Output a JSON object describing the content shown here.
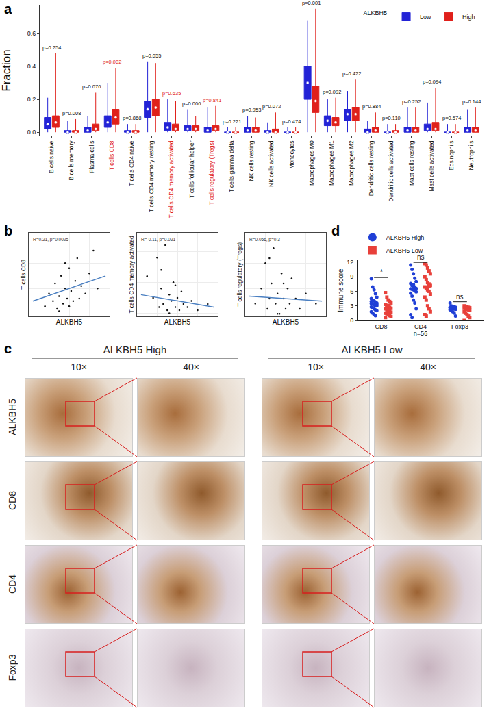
{
  "chart_data": [
    {
      "panel": "a",
      "type": "box",
      "y_label": "Fraction",
      "legend": "top right",
      "legend_title": "ALKBH5",
      "categories": [
        "B cells naive",
        "B cells memory",
        "Plasma cells",
        "T cells CD8",
        "T cells CD4 naive",
        "T cells CD4 memory resting",
        "T cells CD4 memory activated",
        "T cells follicular helper",
        "T cells regulatory (Tregs)",
        "T cells gamma delta",
        "NK cells resting",
        "NK cells activated",
        "Monocytes",
        "Macrophages M0",
        "Macrophages M1",
        "Macrophages M2",
        "Dendritic cells resting",
        "Dendritic cells activated",
        "Mast cells resting",
        "Mast cells activated",
        "Eosinophils",
        "Neutrophils"
      ],
      "annotations": [
        {
          "text": "p=0.254",
          "color": "#111111"
        },
        {
          "text": "p=0.008",
          "color": "#111111"
        },
        {
          "text": "p=0.076",
          "color": "#111111"
        },
        {
          "text": "p=0.002",
          "color": "#e0201b"
        },
        {
          "text": "p=0.868",
          "color": "#111111"
        },
        {
          "text": "p=0.055",
          "color": "#111111"
        },
        {
          "text": "p=0.635",
          "color": "#e0201b"
        },
        {
          "text": "p=0.006",
          "color": "#111111"
        },
        {
          "text": "p=0.841",
          "color": "#e0201b"
        },
        {
          "text": "p=0.221",
          "color": "#111111"
        },
        {
          "text": "p=0.953",
          "color": "#111111"
        },
        {
          "text": "p=0.072",
          "color": "#111111"
        },
        {
          "text": "p=0.474",
          "color": "#111111"
        },
        {
          "text": "p=0.001",
          "color": "#111111"
        },
        {
          "text": "p=0.092",
          "color": "#111111"
        },
        {
          "text": "p=0.422",
          "color": "#111111"
        },
        {
          "text": "p=0.884",
          "color": "#111111"
        },
        {
          "text": "p=0.110",
          "color": "#111111"
        },
        {
          "text": "p=0.252",
          "color": "#111111"
        },
        {
          "text": "p=0.094",
          "color": "#111111"
        },
        {
          "text": "p=0.574",
          "color": "#111111"
        },
        {
          "text": "p=0.144",
          "color": "#111111"
        }
      ],
      "series": [
        {
          "name": "Low",
          "color": "#2323d6",
          "median": [
            0.05,
            0.0,
            0.01,
            0.06,
            0.0,
            0.14,
            0.03,
            0.02,
            0.01,
            0.0,
            0.01,
            0.0,
            0.0,
            0.3,
            0.07,
            0.11,
            0.0,
            0.0,
            0.01,
            0.02,
            0.0,
            0.01
          ],
          "q1": [
            0.02,
            0,
            0,
            0.03,
            0,
            0.09,
            0.01,
            0.01,
            0,
            0,
            0,
            0,
            0,
            0.2,
            0.04,
            0.07,
            0,
            0,
            0,
            0.01,
            0,
            0
          ],
          "q3": [
            0.09,
            0.01,
            0.03,
            0.1,
            0.01,
            0.19,
            0.06,
            0.04,
            0.03,
            0,
            0.03,
            0.01,
            0,
            0.4,
            0.1,
            0.14,
            0.02,
            0,
            0.03,
            0.05,
            0,
            0.03
          ],
          "min": [
            0,
            0,
            0,
            0,
            0,
            0,
            0,
            0,
            0,
            0,
            0,
            0,
            0,
            0,
            0,
            0,
            0,
            0,
            0,
            0,
            0,
            0
          ],
          "max": [
            0.21,
            0.07,
            0.1,
            0.3,
            0.05,
            0.43,
            0.2,
            0.14,
            0.15,
            0.03,
            0.1,
            0.06,
            0.03,
            0.68,
            0.2,
            0.25,
            0.07,
            0.05,
            0.15,
            0.18,
            0.05,
            0.14
          ]
        },
        {
          "name": "High",
          "color": "#e0201b",
          "median": [
            0.06,
            0.0,
            0.02,
            0.09,
            0.0,
            0.15,
            0.02,
            0.02,
            0.02,
            0.0,
            0.01,
            0.0,
            0.0,
            0.19,
            0.06,
            0.11,
            0.01,
            0.0,
            0.01,
            0.02,
            0.0,
            0.01
          ],
          "q1": [
            0.03,
            0,
            0.01,
            0.05,
            0,
            0.1,
            0.01,
            0.01,
            0.01,
            0,
            0,
            0,
            0,
            0.12,
            0.04,
            0.07,
            0,
            0,
            0,
            0.01,
            0,
            0
          ],
          "q3": [
            0.1,
            0.01,
            0.05,
            0.14,
            0.01,
            0.2,
            0.05,
            0.04,
            0.04,
            0,
            0.03,
            0.02,
            0,
            0.28,
            0.09,
            0.15,
            0.03,
            0.01,
            0.03,
            0.06,
            0,
            0.03
          ],
          "min": [
            0,
            0,
            0,
            0,
            0,
            0,
            0,
            0,
            0,
            0,
            0,
            0,
            0,
            0,
            0,
            0,
            0,
            0,
            0,
            0,
            0,
            0
          ],
          "max": [
            0.48,
            0.08,
            0.24,
            0.39,
            0.05,
            0.42,
            0.19,
            0.1,
            0.16,
            0.03,
            0.09,
            0.12,
            0.03,
            0.75,
            0.21,
            0.32,
            0.12,
            0.05,
            0.15,
            0.27,
            0.05,
            0.15
          ]
        }
      ],
      "ylim": [
        -0.02,
        0.77
      ],
      "yticks": [
        {
          "value": 0,
          "label": "0.0"
        },
        0.2,
        0.4,
        0.6
      ]
    },
    {
      "panel": "b",
      "type": "scatter",
      "x_label": "ALKBH5",
      "y_label": "T cells CD8",
      "annotation": "R=0.21, p=0.0025",
      "tick_labels": false,
      "xlim": [
        10,
        50
      ],
      "ylim": [
        -0.01,
        0.32
      ],
      "series": [
        {
          "type": "scatter",
          "color": "#111111",
          "x": [
            18,
            20,
            22,
            23,
            24,
            25,
            26,
            27,
            28,
            29,
            30,
            31,
            32,
            33,
            34,
            36,
            38,
            40,
            42,
            44,
            25,
            28,
            30,
            35
          ],
          "values": [
            0.03,
            0.08,
            0.05,
            0.12,
            0.02,
            0.07,
            0.15,
            0.04,
            0.1,
            0.06,
            0.18,
            0.09,
            0.05,
            0.13,
            0.22,
            0.11,
            0.08,
            0.16,
            0.25,
            0.1,
            0.01,
            0.2,
            0.03,
            0.06
          ]
        },
        {
          "type": "line",
          "color": "#4a7fc1",
          "x": [
            12,
            48
          ],
          "values": [
            0.05,
            0.15
          ]
        }
      ]
    },
    {
      "type": "scatter",
      "x_label": "ALKBH5",
      "y_label": "T cells CD4 memory activated",
      "annotation": "R=-0.11, p=0.021",
      "tick_labels": false,
      "xlim": [
        10,
        50
      ],
      "ylim": [
        -0.01,
        0.26
      ],
      "series": [
        {
          "type": "scatter",
          "color": "#111111",
          "x": [
            15,
            18,
            20,
            21,
            22,
            23,
            24,
            25,
            26,
            27,
            28,
            29,
            30,
            31,
            32,
            33,
            35,
            37,
            40,
            45,
            22,
            26,
            29
          ],
          "values": [
            0.12,
            0.05,
            0.18,
            0.02,
            0.08,
            0.03,
            0.22,
            0.01,
            0.06,
            0.04,
            0.1,
            0.02,
            0.05,
            0.01,
            0.07,
            0.03,
            0.02,
            0.04,
            0.01,
            0.03,
            0.14,
            0.0,
            0.09
          ]
        },
        {
          "type": "line",
          "color": "#4a7fc1",
          "x": [
            12,
            48
          ],
          "values": [
            0.06,
            0.02
          ]
        }
      ]
    },
    {
      "type": "scatter",
      "x_label": "ALKBH5",
      "y_label": "T cells regulatory (Tregs)",
      "annotation": "R=0.056, p=0.3",
      "tick_labels": false,
      "xlim": [
        10,
        50
      ],
      "ylim": [
        -0.005,
        0.16
      ],
      "series": [
        {
          "type": "scatter",
          "color": "#111111",
          "x": [
            15,
            18,
            20,
            21,
            22,
            23,
            24,
            25,
            26,
            27,
            28,
            29,
            30,
            31,
            32,
            33,
            35,
            37,
            40,
            45,
            22,
            26,
            29
          ],
          "values": [
            0.02,
            0.05,
            0.1,
            0.01,
            0.03,
            0.06,
            0.13,
            0.02,
            0.04,
            0.0,
            0.08,
            0.03,
            0.01,
            0.05,
            0.02,
            0.07,
            0.03,
            0.01,
            0.04,
            0.02,
            0.11,
            0.0,
            0.06
          ]
        },
        {
          "type": "line",
          "color": "#4a7fc1",
          "x": [
            12,
            48
          ],
          "values": [
            0.035,
            0.025
          ]
        }
      ]
    },
    {
      "panel": "d",
      "type": "scatter",
      "y_label": "Immune score",
      "x_label": "n=56",
      "legend": "top left",
      "categories": [
        "CD8",
        "CD4",
        "Foxp3"
      ],
      "annotations": [
        "*",
        "ns",
        "ns"
      ],
      "series": [
        {
          "name": "ALKBH5 High",
          "color": "#1f3fd6",
          "marker": "circle",
          "values": [
            [
              8.6,
              6.9,
              6.3,
              5.5,
              4.8,
              4.5,
              4.2,
              4.0,
              3.8,
              3.6,
              3.5,
              3.4,
              3.2,
              3.0,
              3.0,
              2.8,
              2.6,
              2.4,
              2.2,
              2.0,
              1.8,
              1.5,
              1.2,
              1.0,
              3.3,
              3.9
            ],
            [
              11.4,
              10.5,
              9.6,
              8.7,
              8.0,
              7.6,
              7.2,
              7.0,
              6.8,
              6.6,
              6.5,
              6.4,
              6.3,
              6.1,
              5.9,
              5.6,
              5.0,
              4.2,
              3.6,
              2.4,
              1.2,
              0.6,
              7.4,
              6.9
            ],
            [
              3.6,
              3.0,
              2.9,
              2.8,
              2.7,
              2.7,
              2.6,
              2.5,
              2.4,
              2.3,
              2.2,
              2.1,
              1.8,
              1.5,
              0.9,
              2.6,
              2.9
            ]
          ]
        },
        {
          "name": "ALKBH5 Low",
          "color": "#e8403a",
          "marker": "square",
          "values": [
            [
              5.7,
              4.8,
              4.2,
              3.9,
              3.6,
              3.3,
              3.0,
              2.8,
              2.7,
              2.5,
              2.4,
              2.2,
              2.0,
              1.9,
              1.7,
              1.5,
              1.4,
              1.2,
              1.0,
              0.8,
              0.6,
              2.6,
              3.1
            ],
            [
              11.7,
              11.4,
              10.8,
              10.2,
              9.6,
              9.0,
              8.4,
              7.8,
              7.5,
              7.2,
              6.9,
              6.6,
              6.3,
              6.0,
              5.4,
              4.8,
              4.2,
              3.0,
              2.4,
              1.8,
              1.2,
              0.9,
              6.8,
              7.0
            ],
            [
              3.0,
              2.9,
              2.8,
              2.7,
              2.6,
              2.5,
              2.4,
              2.3,
              2.2,
              2.1,
              1.8,
              1.5,
              1.2,
              0.9,
              0.6,
              0.0,
              2.8
            ]
          ]
        }
      ],
      "ylim": [
        0,
        12.4
      ],
      "yticks": [
        0,
        3,
        6,
        9,
        12
      ]
    }
  ],
  "panel_c": {
    "panel": "c",
    "groups": [
      "ALKBH5 High",
      "ALKBH5 Low"
    ],
    "magnifications": [
      "10×",
      "40×"
    ],
    "rows": [
      "ALKBH5",
      "CD8",
      "CD4",
      "Foxp3"
    ]
  }
}
